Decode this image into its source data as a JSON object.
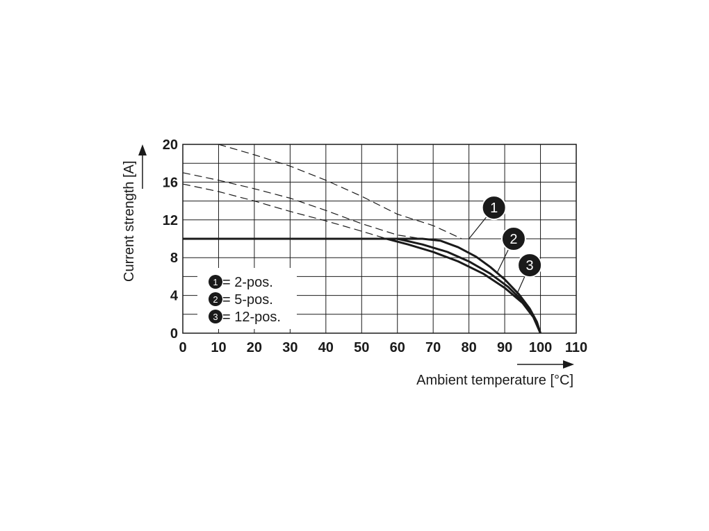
{
  "chart_data": {
    "type": "line",
    "xlabel": "Ambient temperature [°C]",
    "ylabel": "Current strength [A]",
    "xlim": [
      0,
      110
    ],
    "ylim": [
      0,
      20
    ],
    "x_ticks": [
      0,
      10,
      20,
      30,
      40,
      50,
      60,
      70,
      80,
      90,
      100,
      110
    ],
    "y_ticks": [
      0,
      4,
      8,
      12,
      16,
      20
    ],
    "grid": true,
    "series": [
      {
        "name": "2-pos.",
        "marker": "1",
        "derated": {
          "x": [
            0,
            67,
            72,
            77,
            82,
            86,
            90,
            94,
            97,
            99,
            100
          ],
          "y": [
            10,
            10,
            9.8,
            9.1,
            8.1,
            7.0,
            5.7,
            4.1,
            2.6,
            1.2,
            0
          ]
        },
        "base_dashed": {
          "x": [
            10,
            20,
            30,
            40,
            50,
            60,
            70,
            78
          ],
          "y": [
            20,
            18.9,
            17.7,
            16.2,
            14.5,
            12.6,
            11.4,
            10
          ]
        }
      },
      {
        "name": "5-pos.",
        "marker": "2",
        "derated": {
          "x": [
            0,
            60,
            67,
            74,
            80,
            86,
            91,
            95,
            98,
            100
          ],
          "y": [
            10,
            10,
            9.4,
            8.6,
            7.6,
            6.3,
            4.9,
            3.4,
            1.8,
            0
          ]
        },
        "base_dashed": {
          "x": [
            0,
            10,
            20,
            30,
            40,
            50,
            60,
            67
          ],
          "y": [
            17,
            16.2,
            15.3,
            14.3,
            13.0,
            11.6,
            10.4,
            10
          ]
        }
      },
      {
        "name": "12-pos.",
        "marker": "3",
        "derated": {
          "x": [
            0,
            57,
            63,
            70,
            77,
            84,
            90,
            95,
            98,
            100
          ],
          "y": [
            10,
            10,
            9.4,
            8.6,
            7.6,
            6.3,
            4.8,
            3.2,
            1.7,
            0
          ]
        },
        "base_dashed": {
          "x": [
            0,
            10,
            20,
            30,
            40,
            50,
            57
          ],
          "y": [
            15.8,
            15.0,
            14.0,
            12.9,
            11.9,
            10.8,
            10
          ]
        }
      }
    ],
    "legend": {
      "placement": "bottom-left",
      "entries": [
        {
          "marker": "1",
          "text": "= 2-pos."
        },
        {
          "marker": "2",
          "text": "= 5-pos."
        },
        {
          "marker": "3",
          "text": "= 12-pos."
        }
      ]
    },
    "annotations": [
      {
        "marker": "1",
        "x": 87,
        "y": 13.3,
        "points_to": [
          80,
          10
        ]
      },
      {
        "marker": "2",
        "x": 92.5,
        "y": 10,
        "points_to": [
          88,
          6.5
        ]
      },
      {
        "marker": "3",
        "x": 97,
        "y": 7.2,
        "points_to": [
          93,
          3.8
        ]
      }
    ]
  }
}
